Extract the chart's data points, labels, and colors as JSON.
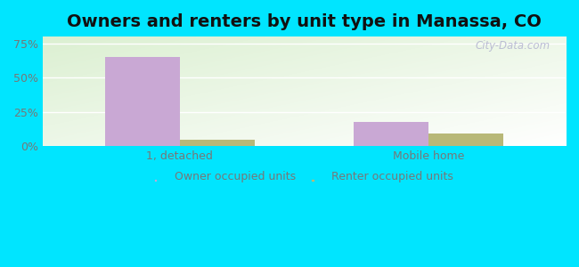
{
  "title": "Owners and renters by unit type in Manassa, CO",
  "categories": [
    "1, detached",
    "Mobile home"
  ],
  "owner_values": [
    65,
    18
  ],
  "renter_values": [
    5,
    9
  ],
  "owner_color": "#c9a8d4",
  "renter_color": "#b8b878",
  "yticks": [
    0,
    25,
    50,
    75
  ],
  "ytick_labels": [
    "0%",
    "25%",
    "50%",
    "75%"
  ],
  "ylim": [
    0,
    80
  ],
  "bar_width": 0.3,
  "legend_owner": "Owner occupied units",
  "legend_renter": "Renter occupied units",
  "watermark": "City-Data.com",
  "outer_bg": "#00e5ff",
  "title_fontsize": 14,
  "tick_color": "#777777"
}
